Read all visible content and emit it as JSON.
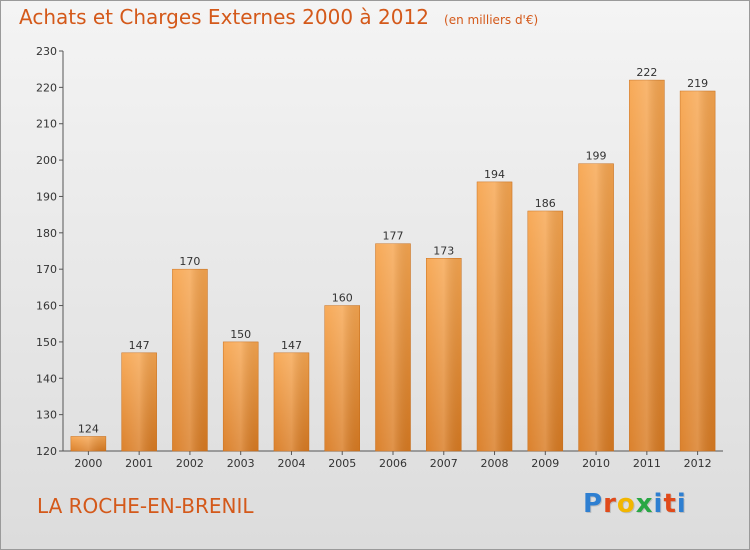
{
  "colors": {
    "accent": "#d4591a",
    "bar_top": "#f7a650",
    "bar_bottom": "#d97b22",
    "logo_letters": [
      "#2e7fd1",
      "#e04a1a",
      "#f2b600",
      "#28a745",
      "#2e7fd1",
      "#e04a1a",
      "#2e7fd1"
    ]
  },
  "footer": {
    "commune": "LA ROCHE-EN-BRENIL",
    "logo_text": "Proxiti"
  },
  "chart_data": {
    "type": "bar",
    "title": "Achats et Charges Externes 2000 à 2012",
    "unit": "(en milliers d'€)",
    "categories": [
      "2000",
      "2001",
      "2002",
      "2003",
      "2004",
      "2005",
      "2006",
      "2007",
      "2008",
      "2009",
      "2010",
      "2011",
      "2012"
    ],
    "values": [
      124,
      147,
      170,
      150,
      147,
      160,
      177,
      173,
      194,
      186,
      199,
      222,
      219
    ],
    "ylim": [
      120,
      230
    ],
    "yticks": [
      120,
      130,
      140,
      150,
      160,
      170,
      180,
      190,
      200,
      210,
      220,
      230
    ],
    "xlabel": "",
    "ylabel": "",
    "grid": false,
    "legend": "none"
  }
}
